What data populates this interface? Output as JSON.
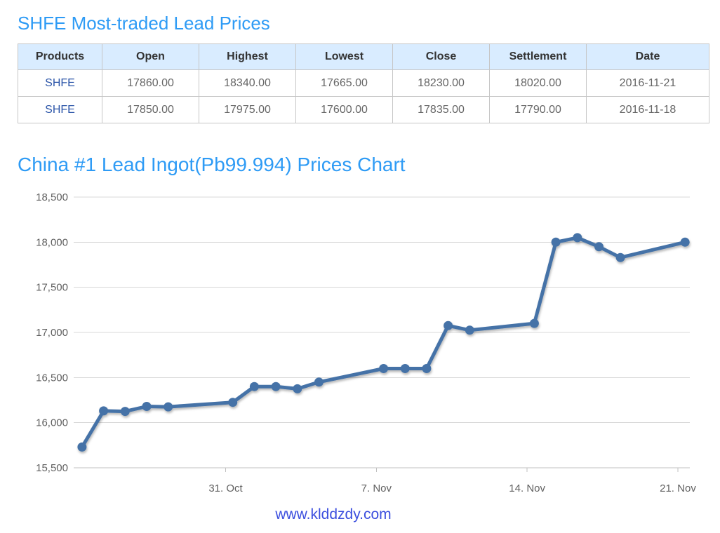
{
  "titles": {
    "table_section": "SHFE Most-traded Lead Prices",
    "chart_section": "China #1 Lead Ingot(Pb99.994) Prices Chart"
  },
  "table": {
    "headers": [
      "Products",
      "Open",
      "Highest",
      "Lowest",
      "Close",
      "Settlement",
      "Date"
    ],
    "rows": [
      {
        "product": "SHFE",
        "open": "17860.00",
        "highest": "18340.00",
        "lowest": "17665.00",
        "close": "18230.00",
        "settlement": "18020.00",
        "date": "2016-11-21"
      },
      {
        "product": "SHFE",
        "open": "17850.00",
        "highest": "17975.00",
        "lowest": "17600.00",
        "close": "17835.00",
        "settlement": "17790.00",
        "date": "2016-11-18"
      }
    ]
  },
  "chart_data": {
    "type": "line",
    "title": "China #1 Lead Ingot(Pb99.994) Prices Chart",
    "points": [
      {
        "date": "2016-10-24",
        "value": 15730
      },
      {
        "date": "2016-10-25",
        "value": 16130
      },
      {
        "date": "2016-10-26",
        "value": 16125
      },
      {
        "date": "2016-10-27",
        "value": 16180
      },
      {
        "date": "2016-10-28",
        "value": 16175
      },
      {
        "date": "2016-10-31",
        "value": 16225
      },
      {
        "date": "2016-11-01",
        "value": 16400
      },
      {
        "date": "2016-11-02",
        "value": 16400
      },
      {
        "date": "2016-11-03",
        "value": 16375
      },
      {
        "date": "2016-11-04",
        "value": 16450
      },
      {
        "date": "2016-11-07",
        "value": 16600
      },
      {
        "date": "2016-11-08",
        "value": 16600
      },
      {
        "date": "2016-11-09",
        "value": 16600
      },
      {
        "date": "2016-11-10",
        "value": 17075
      },
      {
        "date": "2016-11-11",
        "value": 17025
      },
      {
        "date": "2016-11-14",
        "value": 17100
      },
      {
        "date": "2016-11-15",
        "value": 18000
      },
      {
        "date": "2016-11-16",
        "value": 18050
      },
      {
        "date": "2016-11-17",
        "value": 17950
      },
      {
        "date": "2016-11-18",
        "value": 17830
      },
      {
        "date": "2016-11-21",
        "value": 18000
      }
    ],
    "x_ticks": [
      {
        "label": "31. Oct",
        "date": "2016-10-31"
      },
      {
        "label": "7. Nov",
        "date": "2016-11-07"
      },
      {
        "label": "14. Nov",
        "date": "2016-11-14"
      },
      {
        "label": "21. Nov",
        "date": "2016-11-21"
      }
    ],
    "y_ticks": [
      15500,
      16000,
      16500,
      17000,
      17500,
      18000,
      18500
    ],
    "ylim": [
      15500,
      18500
    ],
    "grid": "horizontal",
    "legend": "none",
    "line_color": "#4572a7",
    "marker": "circle",
    "label_color": "#606060",
    "grid_color": "#d8d8d8",
    "axis_color": "#c0c0c0"
  },
  "footer": {
    "link": "www.klddzdy.com"
  },
  "colors": {
    "title_blue": "#2e9bf5",
    "product_link_blue": "#2b55a8",
    "footer_blue": "#3b4ede",
    "table_header_bg": "#d9ecff",
    "table_border": "#c6c6c6",
    "cell_text": "#666666",
    "header_text": "#333333"
  }
}
